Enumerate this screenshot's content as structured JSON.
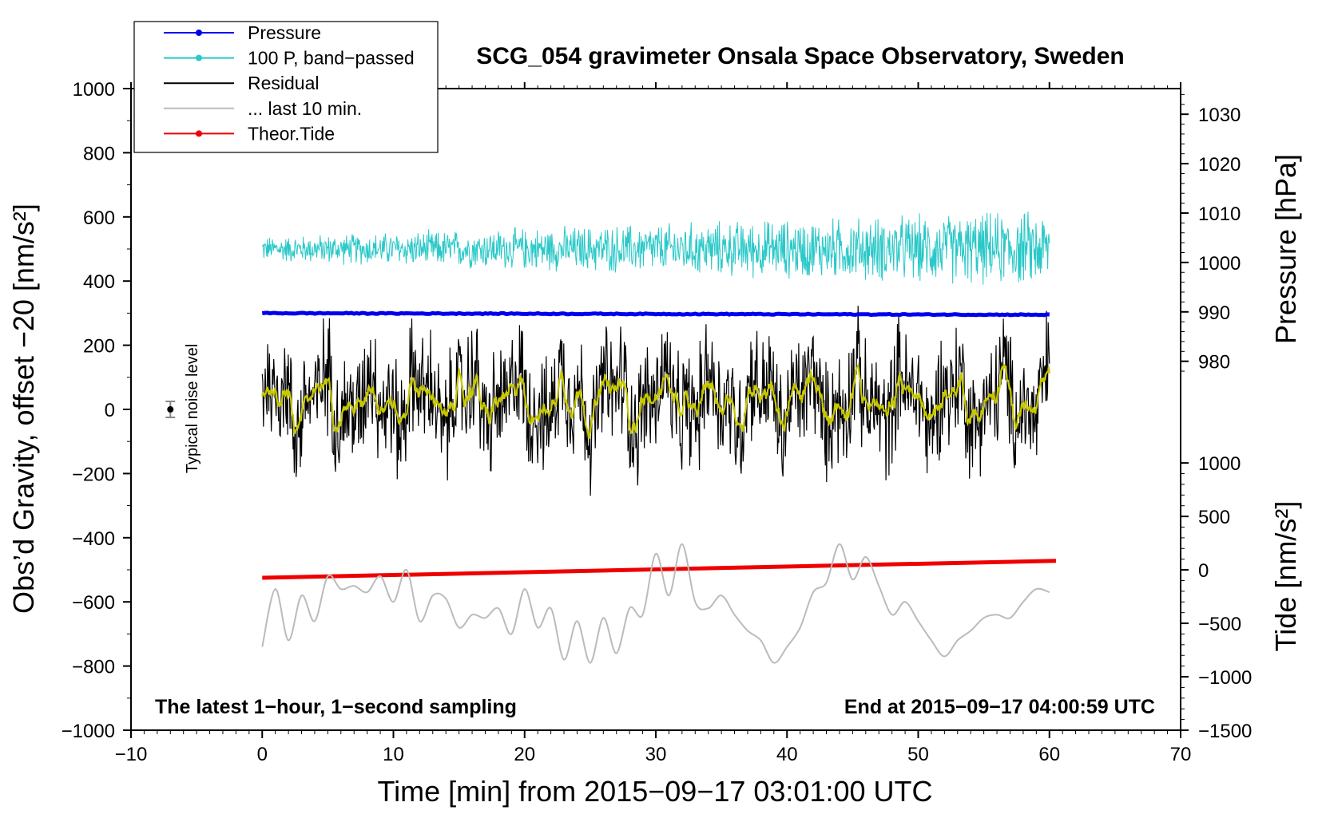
{
  "chart_data": {
    "type": "line",
    "title": "SCG_054 gravimeter Onsala Space Observatory, Sweden",
    "xlabel": "Time [min] from 2015−09−17 03:01:00 UTC",
    "ylabel_left": "Obs’d Gravity, offset −20 [nm/s²]",
    "ylabel_right_top": "Pressure [hPa]",
    "ylabel_right_bottom": "Tide [nm/s²]",
    "xlim": [
      -10,
      70
    ],
    "ylim": [
      -1000,
      1000
    ],
    "x_ticks": [
      -10,
      0,
      10,
      20,
      30,
      40,
      50,
      60,
      70
    ],
    "x_tick_labels": [
      "−10",
      "0",
      "10",
      "20",
      "30",
      "40",
      "50",
      "60",
      "70"
    ],
    "y_ticks": [
      1000,
      800,
      600,
      400,
      200,
      0,
      -200,
      -400,
      -600,
      -800,
      -1000
    ],
    "y_tick_labels": [
      "1000",
      "800",
      "600",
      "400",
      "200",
      "0",
      "−200",
      "−400",
      "−600",
      "−800",
      "−1000"
    ],
    "pressure_axis": {
      "ticks": [
        1030,
        1020,
        1010,
        1000,
        990,
        980
      ],
      "tick_labels": [
        "1030",
        "1020",
        "1010",
        "1000",
        "990",
        "980"
      ],
      "map_to_left": [
        [
          1030,
          920
        ],
        [
          980,
          150
        ]
      ]
    },
    "tide_axis": {
      "ticks": [
        1000,
        500,
        0,
        -500,
        -1000,
        -1500
      ],
      "tick_labels": [
        "1000",
        "500",
        "0",
        "−500",
        "−1000",
        "−1500"
      ],
      "map_to_left": [
        [
          1000,
          -167
        ],
        [
          -1500,
          -1000
        ]
      ]
    },
    "legend": [
      {
        "label": "Pressure",
        "color": "#0000ee",
        "marker": true
      },
      {
        "label": "100 P, band−passed",
        "color": "#2ac8c8",
        "marker": true
      },
      {
        "label": "Residual",
        "color": "#000000",
        "marker": false
      },
      {
        "label": "... last 10 min.",
        "color": "#bbbbbb",
        "marker": false
      },
      {
        "label": "Theor.Tide",
        "color": "#ee0000",
        "marker": true
      }
    ],
    "annotation_left": "The latest 1−hour, 1−second sampling",
    "annotation_right": "End at 2015−09−17 04:00:59 UTC",
    "noise_label": "Typical noise level",
    "noise_point": {
      "x": -7,
      "y": 0,
      "err": 25
    },
    "series": [
      {
        "name": "Pressure",
        "color": "#0000ee",
        "x_range": [
          0,
          60
        ],
        "start": 300,
        "end": 295
      },
      {
        "name": "Theor.Tide",
        "color": "#ee0000",
        "x_range": [
          0,
          60.5
        ],
        "start": -525,
        "end": -472
      },
      {
        "name": "100 P, band−passed",
        "color": "#2ac8c8",
        "x_range": [
          0,
          60
        ],
        "center": 500,
        "amplitude_start": 60,
        "amplitude_end": 180
      },
      {
        "name": "Residual",
        "color": "#000000",
        "x_range": [
          0,
          60
        ],
        "center": 30,
        "amplitude": 150
      },
      {
        "name": "Residual (smoothed)",
        "color": "#c8c800",
        "x_range": [
          0,
          60
        ],
        "center": 30,
        "amplitude": 80
      },
      {
        "name": "... last 10 min.",
        "color": "#bbbbbb",
        "x_range": [
          0,
          60
        ],
        "points": [
          [
            0,
            -740
          ],
          [
            1,
            -560
          ],
          [
            2,
            -720
          ],
          [
            3,
            -580
          ],
          [
            4,
            -660
          ],
          [
            5,
            -520
          ],
          [
            6,
            -560
          ],
          [
            7,
            -550
          ],
          [
            8,
            -570
          ],
          [
            9,
            -520
          ],
          [
            10,
            -600
          ],
          [
            11,
            -500
          ],
          [
            12,
            -660
          ],
          [
            13,
            -580
          ],
          [
            14,
            -590
          ],
          [
            15,
            -680
          ],
          [
            16,
            -640
          ],
          [
            17,
            -650
          ],
          [
            18,
            -620
          ],
          [
            19,
            -700
          ],
          [
            20,
            -560
          ],
          [
            21,
            -680
          ],
          [
            22,
            -620
          ],
          [
            23,
            -780
          ],
          [
            24,
            -660
          ],
          [
            25,
            -790
          ],
          [
            26,
            -650
          ],
          [
            27,
            -760
          ],
          [
            28,
            -620
          ],
          [
            29,
            -640
          ],
          [
            30,
            -450
          ],
          [
            31,
            -580
          ],
          [
            32,
            -420
          ],
          [
            33,
            -600
          ],
          [
            34,
            -620
          ],
          [
            35,
            -580
          ],
          [
            36,
            -640
          ],
          [
            37,
            -690
          ],
          [
            38,
            -720
          ],
          [
            39,
            -790
          ],
          [
            40,
            -740
          ],
          [
            41,
            -680
          ],
          [
            42,
            -570
          ],
          [
            43,
            -540
          ],
          [
            44,
            -420
          ],
          [
            45,
            -530
          ],
          [
            46,
            -460
          ],
          [
            47,
            -550
          ],
          [
            48,
            -640
          ],
          [
            49,
            -600
          ],
          [
            50,
            -660
          ],
          [
            51,
            -720
          ],
          [
            52,
            -770
          ],
          [
            53,
            -720
          ],
          [
            54,
            -690
          ],
          [
            55,
            -650
          ],
          [
            56,
            -640
          ],
          [
            57,
            -650
          ],
          [
            58,
            -600
          ],
          [
            59,
            -560
          ],
          [
            60,
            -570
          ]
        ]
      }
    ]
  }
}
